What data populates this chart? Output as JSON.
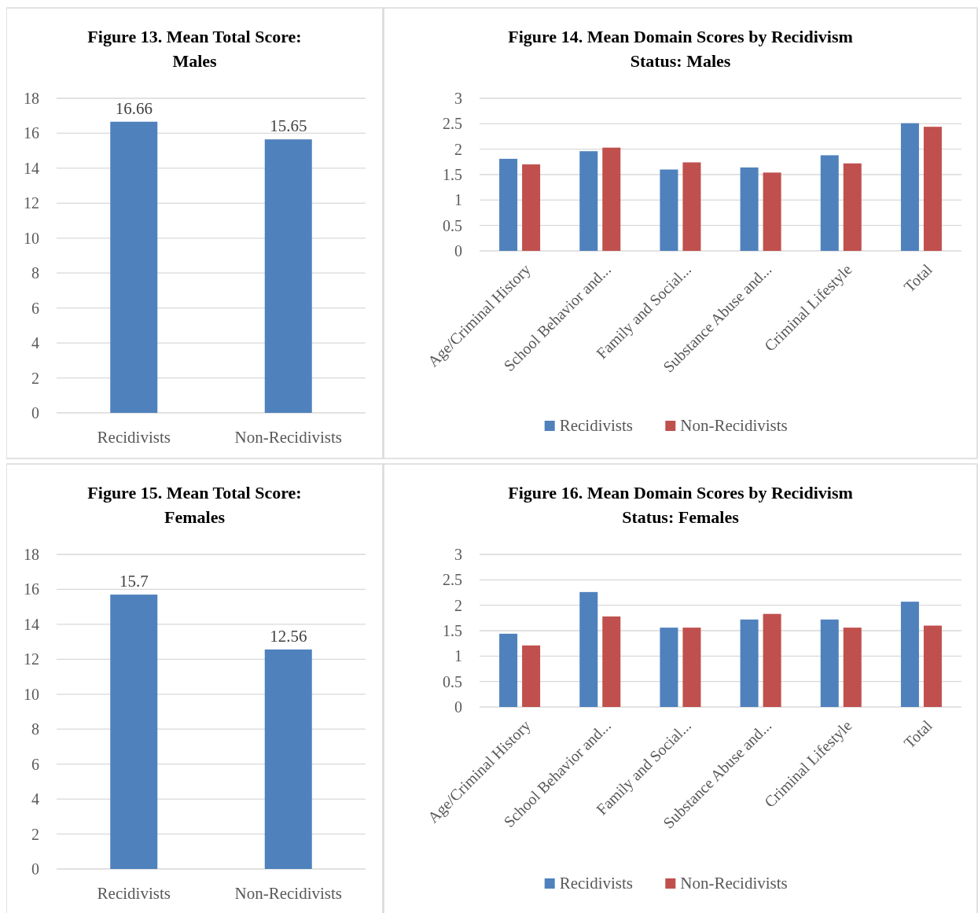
{
  "chart_data": [
    {
      "type": "bar",
      "title": "Figure 13. Mean Total Score: Males",
      "categories": [
        "Recidivists",
        "Non-Recidivists"
      ],
      "values": [
        16.66,
        15.65
      ],
      "color": "#4f81bd",
      "ylim": [
        0,
        18
      ],
      "yticks": [
        0,
        2,
        4,
        6,
        8,
        10,
        12,
        14,
        16,
        18
      ],
      "grid": "y",
      "data_labels": true
    },
    {
      "type": "bar",
      "title": "Figure 14. Mean Domain Scores by Recidivism Status: Males",
      "categories": [
        "Age/Criminal History",
        "School Behavior and...",
        "Family and Social...",
        "Substance Abuse and...",
        "Criminal Lifestyle",
        "Total"
      ],
      "series": [
        {
          "name": "Recidivists",
          "color": "#4f81bd",
          "values": [
            1.81,
            1.96,
            1.6,
            1.64,
            1.88,
            2.51
          ]
        },
        {
          "name": "Non-Recidivists",
          "color": "#c0504d",
          "values": [
            1.7,
            2.03,
            1.74,
            1.54,
            1.72,
            2.44
          ]
        }
      ],
      "ylim": [
        0,
        3
      ],
      "yticks": [
        0,
        0.5,
        1,
        1.5,
        2,
        2.5,
        3
      ],
      "grid": "y",
      "legend": "bottom"
    },
    {
      "type": "bar",
      "title": "Figure 15. Mean Total Score: Females",
      "categories": [
        "Recidivists",
        "Non-Recidivists"
      ],
      "values": [
        15.7,
        12.56
      ],
      "color": "#4f81bd",
      "ylim": [
        0,
        18
      ],
      "yticks": [
        0,
        2,
        4,
        6,
        8,
        10,
        12,
        14,
        16,
        18
      ],
      "grid": "y",
      "data_labels": true
    },
    {
      "type": "bar",
      "title": "Figure 16. Mean Domain Scores by Recidivism Status: Females",
      "categories": [
        "Age/Criminal History",
        "School Behavior and...",
        "Family and Social...",
        "Substance Abuse and...",
        "Criminal Lifestyle",
        "Total"
      ],
      "series": [
        {
          "name": "Recidivists",
          "color": "#4f81bd",
          "values": [
            1.44,
            2.26,
            1.56,
            1.72,
            1.72,
            2.07
          ]
        },
        {
          "name": "Non-Recidivists",
          "color": "#c0504d",
          "values": [
            1.21,
            1.78,
            1.56,
            1.83,
            1.56,
            1.6
          ]
        }
      ],
      "ylim": [
        0,
        3
      ],
      "yticks": [
        0,
        0.5,
        1,
        1.5,
        2,
        2.5,
        3
      ],
      "grid": "y",
      "legend": "bottom"
    }
  ]
}
